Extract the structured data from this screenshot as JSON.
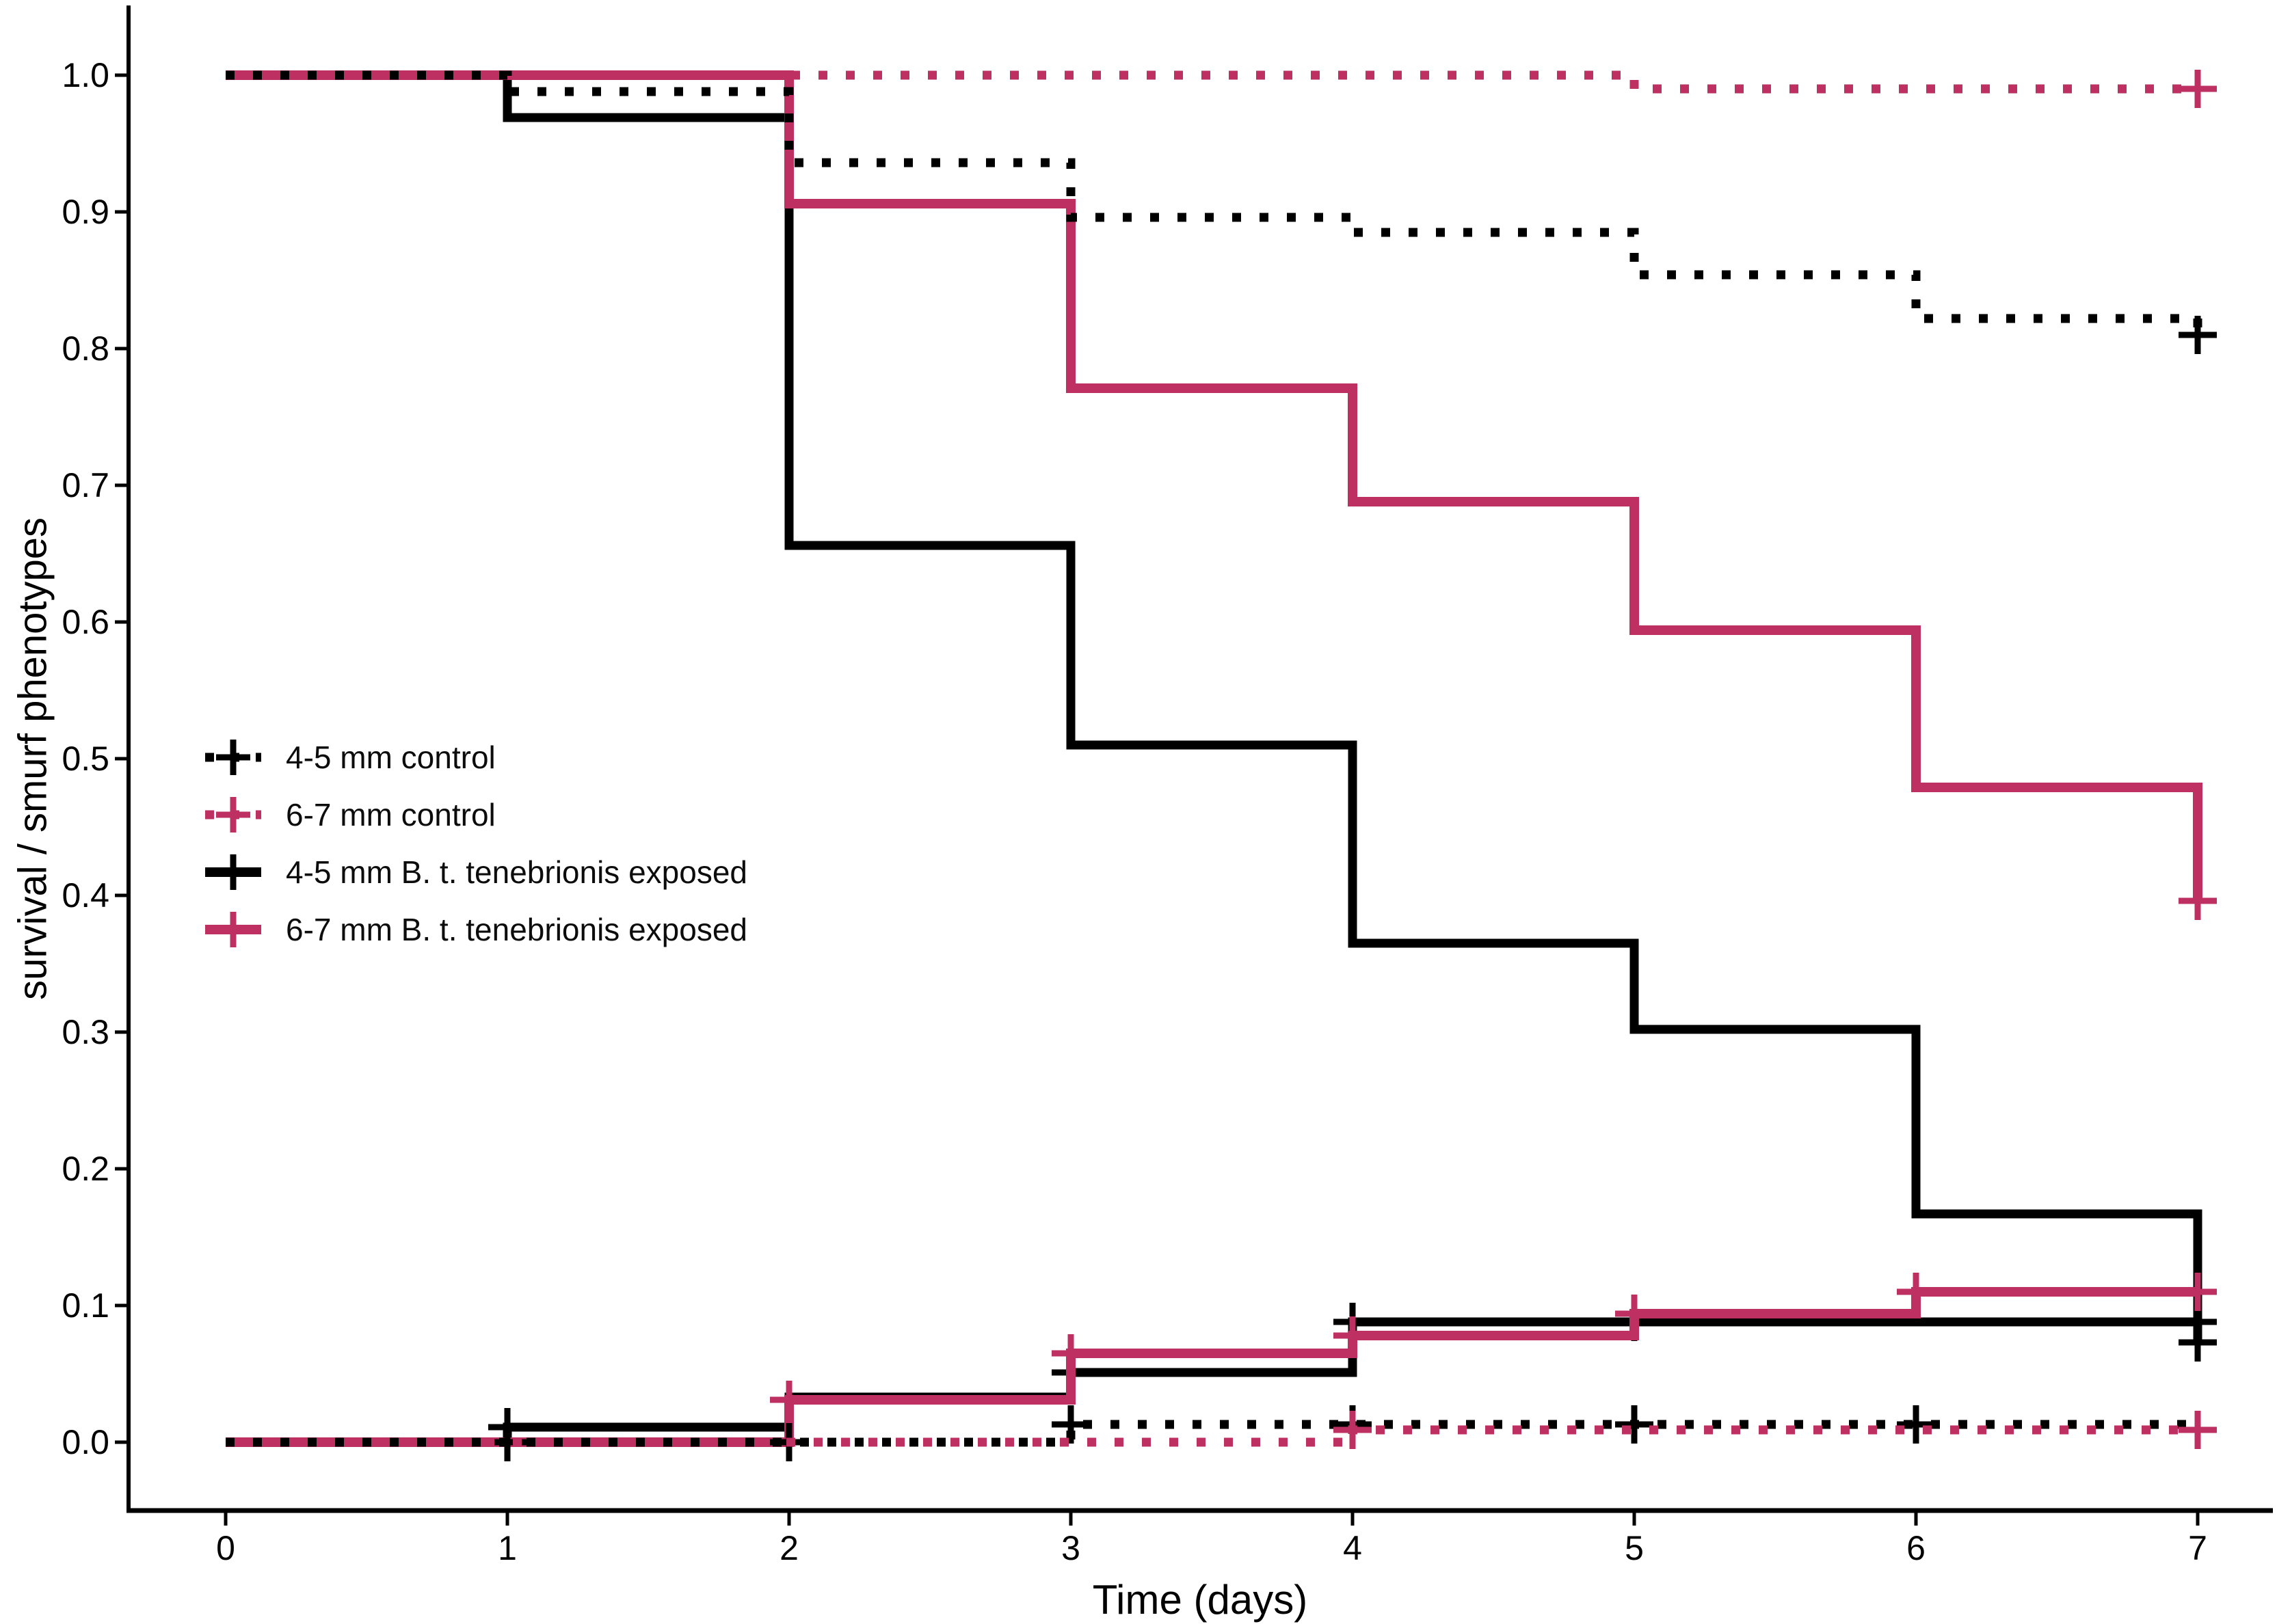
{
  "figure": {
    "background": "#ffffff"
  },
  "colors": {
    "black": "#000000",
    "pink": "#BE2F62"
  },
  "axes": {
    "x_title": "Time (days)",
    "y_title": "survival / smurf phenotypes",
    "x_tick_labels": [
      "0",
      "1",
      "2",
      "3",
      "4",
      "5",
      "6",
      "7"
    ],
    "y_tick_labels": [
      "1.0",
      "0.9",
      "0.8",
      "0.7",
      "0.6",
      "0.5",
      "0.4",
      "0.3",
      "0.2",
      "0.1",
      "0.0"
    ]
  },
  "legend": {
    "items": [
      {
        "label": "4-5 mm control",
        "color": "#000000",
        "dash": true
      },
      {
        "label": "6-7 mm control",
        "color": "#BE2F62",
        "dash": true
      },
      {
        "label": "4-5 mm B. t. tenebrionis exposed",
        "color": "#000000",
        "dash": false
      },
      {
        "label": "6-7 mm B. t. tenebrionis exposed",
        "color": "#BE2F62",
        "dash": false
      }
    ]
  },
  "chart_data": {
    "type": "line",
    "subtype": "kaplan-meier-step",
    "title": "",
    "xlabel": "Time (days)",
    "ylabel": "survival / smurf phenotypes",
    "xlim": [
      0,
      7
    ],
    "ylim": [
      0.0,
      1.0
    ],
    "x_ticks": [
      0,
      1,
      2,
      3,
      4,
      5,
      6,
      7
    ],
    "y_ticks": [
      1.0,
      0.9,
      0.8,
      0.7,
      0.6,
      0.5,
      0.4,
      0.3,
      0.2,
      0.1,
      0.0
    ],
    "grid": false,
    "legend_position": "inside-middle-left",
    "series": [
      {
        "id": "survival-control-4-5",
        "name": "4-5 mm control (survival)",
        "color": "#000000",
        "linestyle": "dotted",
        "phase": 0,
        "steps": [
          [
            0,
            1.0
          ],
          [
            1,
            0.988
          ],
          [
            2,
            0.936
          ],
          [
            3,
            0.896
          ],
          [
            4,
            0.885
          ],
          [
            5,
            0.854
          ],
          [
            6,
            0.822
          ],
          [
            7,
            0.81
          ]
        ],
        "censors": [
          [
            7,
            0.81
          ]
        ]
      },
      {
        "id": "survival-control-6-7",
        "name": "6-7 mm control (survival)",
        "color": "#BE2F62",
        "linestyle": "dotted",
        "phase": 13,
        "steps": [
          [
            0,
            1.0
          ],
          [
            5,
            0.99
          ]
        ],
        "censors": [
          [
            7,
            0.99
          ]
        ]
      },
      {
        "id": "survival-exposed-4-5",
        "name": "4-5 mm B. t. tenebrionis exposed (survival)",
        "color": "#000000",
        "linestyle": "solid",
        "phase": 0,
        "steps": [
          [
            0,
            1.0
          ],
          [
            1,
            0.969
          ],
          [
            2,
            0.656
          ],
          [
            3,
            0.51
          ],
          [
            4,
            0.365
          ],
          [
            5,
            0.302
          ],
          [
            6,
            0.167
          ],
          [
            7,
            0.073
          ]
        ],
        "censors": [
          [
            7,
            0.073
          ]
        ]
      },
      {
        "id": "survival-exposed-6-7",
        "name": "6-7 mm B. t. tenebrionis exposed (survival)",
        "color": "#BE2F62",
        "linestyle": "solid",
        "phase": 0,
        "steps": [
          [
            0,
            1.0
          ],
          [
            2,
            0.906
          ],
          [
            3,
            0.771
          ],
          [
            4,
            0.688
          ],
          [
            5,
            0.594
          ],
          [
            6,
            0.479
          ],
          [
            7,
            0.396
          ]
        ],
        "censors": [
          [
            7,
            0.396
          ]
        ]
      },
      {
        "id": "smurf-control-4-5",
        "name": "4-5 mm control (smurf phenotypes)",
        "color": "#000000",
        "linestyle": "dotted",
        "phase": 0,
        "steps": [
          [
            0,
            0.0
          ],
          [
            3,
            0.013
          ]
        ],
        "censors": [
          [
            1,
            0.0
          ],
          [
            2,
            0.0
          ],
          [
            3,
            0.013
          ],
          [
            4,
            0.013
          ],
          [
            5,
            0.013
          ],
          [
            6,
            0.013
          ]
        ]
      },
      {
        "id": "smurf-control-6-7",
        "name": "6-7 mm control (smurf phenotypes)",
        "color": "#BE2F62",
        "linestyle": "dotted",
        "phase": 20,
        "steps": [
          [
            0,
            0.0
          ],
          [
            4,
            0.009
          ]
        ],
        "censors": [
          [
            4,
            0.009
          ],
          [
            7,
            0.009
          ]
        ]
      },
      {
        "id": "smurf-exposed-4-5",
        "name": "4-5 mm B. t. tenebrionis exposed (smurf phenotypes)",
        "color": "#000000",
        "linestyle": "solid",
        "phase": 0,
        "steps": [
          [
            0,
            0.0
          ],
          [
            1,
            0.011
          ],
          [
            2,
            0.033
          ],
          [
            3,
            0.051
          ],
          [
            4,
            0.088
          ]
        ],
        "censors": [
          [
            1,
            0.011
          ],
          [
            3,
            0.051
          ],
          [
            4,
            0.088
          ],
          [
            5,
            0.088
          ],
          [
            7,
            0.088
          ]
        ]
      },
      {
        "id": "smurf-exposed-6-7",
        "name": "6-7 mm B. t. tenebrionis exposed (smurf phenotypes)",
        "color": "#BE2F62",
        "linestyle": "solid",
        "phase": 0,
        "steps": [
          [
            0,
            0.0
          ],
          [
            2,
            0.031
          ],
          [
            3,
            0.065
          ],
          [
            4,
            0.078
          ],
          [
            5,
            0.094
          ],
          [
            6,
            0.11
          ]
        ],
        "censors": [
          [
            2,
            0.031
          ],
          [
            3,
            0.065
          ],
          [
            4,
            0.078
          ],
          [
            5,
            0.094
          ],
          [
            6,
            0.11
          ],
          [
            7,
            0.11
          ]
        ]
      }
    ]
  }
}
